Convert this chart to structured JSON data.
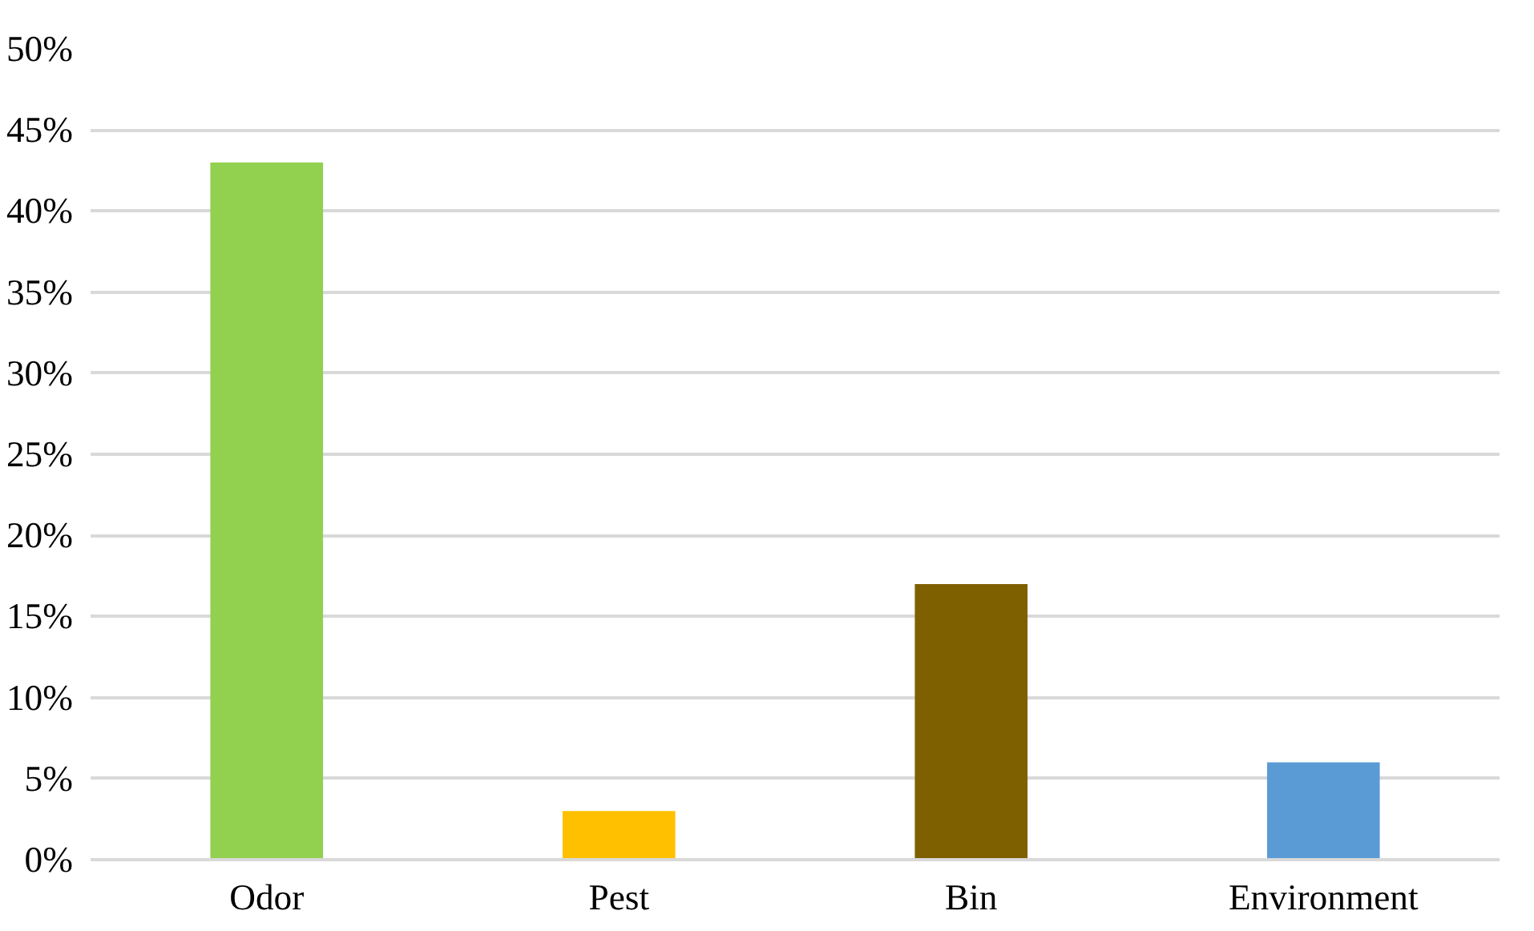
{
  "chart_data": {
    "type": "bar",
    "categories": [
      "Odor",
      "Pest",
      "Bin",
      "Environment"
    ],
    "values": [
      43,
      3,
      17,
      6
    ],
    "colors": [
      "#92d050",
      "#ffc000",
      "#7f6000",
      "#5b9bd5"
    ],
    "ylim": [
      0,
      50
    ],
    "yticks": [
      {
        "value": 0,
        "label": "0%"
      },
      {
        "value": 5,
        "label": "5%"
      },
      {
        "value": 10,
        "label": "10%"
      },
      {
        "value": 15,
        "label": "15%"
      },
      {
        "value": 20,
        "label": "20%"
      },
      {
        "value": 25,
        "label": "25%"
      },
      {
        "value": 30,
        "label": "30%"
      },
      {
        "value": 35,
        "label": "35%"
      },
      {
        "value": 40,
        "label": "40%"
      },
      {
        "value": 45,
        "label": "45%"
      },
      {
        "value": 50,
        "label": "50%"
      }
    ],
    "grid": "y"
  }
}
